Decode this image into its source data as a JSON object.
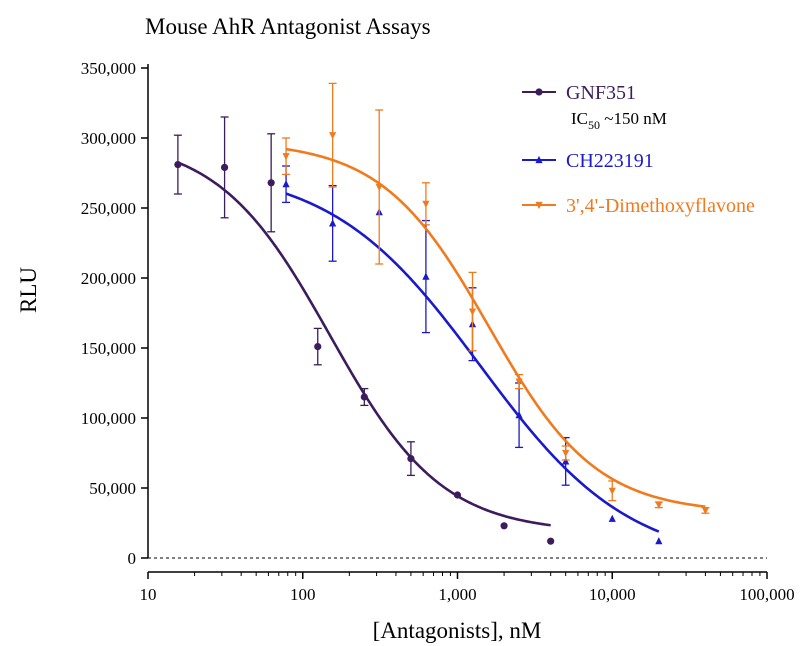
{
  "chart_data": {
    "type": "scatter",
    "title": "Mouse AhR Antagonist Assays",
    "xlabel": "[Antagonists], nM",
    "ylabel": "RLU",
    "xscale": "log",
    "xlim": [
      10,
      100000
    ],
    "ylim": [
      0,
      350000
    ],
    "x_ticks": [
      {
        "value": 10,
        "label": "10"
      },
      {
        "value": 100,
        "label": "100"
      },
      {
        "value": 1000,
        "label": "1,000"
      },
      {
        "value": 10000,
        "label": "10,000"
      },
      {
        "value": 100000,
        "label": "100,000"
      }
    ],
    "y_ticks": [
      {
        "value": 0,
        "label": "0"
      },
      {
        "value": 50000,
        "label": "50,000"
      },
      {
        "value": 100000,
        "label": "100,000"
      },
      {
        "value": 150000,
        "label": "150,000"
      },
      {
        "value": 200000,
        "label": "200,000"
      },
      {
        "value": 250000,
        "label": "250,000"
      },
      {
        "value": 300000,
        "label": "300,000"
      },
      {
        "value": 350000,
        "label": "350,000"
      }
    ],
    "baseline": {
      "y": 0,
      "style": "dashed"
    },
    "grid": false,
    "legend_position": "top-right",
    "annotation": {
      "prefix": "IC",
      "subscript": "50",
      "suffix": " ~150 nM"
    },
    "series": [
      {
        "name": "GNF351",
        "color": "#3d1c5e",
        "marker": "circle",
        "points": [
          {
            "x": 15.6,
            "y": 281000,
            "err": 21000
          },
          {
            "x": 31.25,
            "y": 279000,
            "err": 36000
          },
          {
            "x": 62.5,
            "y": 268000,
            "err": 35000
          },
          {
            "x": 125,
            "y": 151000,
            "err": 13000
          },
          {
            "x": 250,
            "y": 115000,
            "err": 6000
          },
          {
            "x": 500,
            "y": 71000,
            "err": 12000
          },
          {
            "x": 1000,
            "y": 45000,
            "err": 0
          },
          {
            "x": 2000,
            "y": 23000,
            "err": 0
          },
          {
            "x": 4000,
            "y": 12000,
            "err": 0
          }
        ],
        "fit": {
          "top": 300000,
          "bottom": 18000,
          "ic50": 150,
          "hill": 1.2,
          "xmin": 15.6,
          "xmax": 4000
        }
      },
      {
        "name": "CH223191",
        "color": "#1a1acc",
        "marker": "triangle-up",
        "points": [
          {
            "x": 78,
            "y": 267000,
            "err": 13000
          },
          {
            "x": 156,
            "y": 239000,
            "err": 27000
          },
          {
            "x": 312,
            "y": 247000,
            "err": 0
          },
          {
            "x": 625,
            "y": 201000,
            "err": 40000
          },
          {
            "x": 1250,
            "y": 167000,
            "err": 26000
          },
          {
            "x": 2500,
            "y": 102000,
            "err": 23000
          },
          {
            "x": 5000,
            "y": 69000,
            "err": 17000
          },
          {
            "x": 10000,
            "y": 28000,
            "err": 0
          },
          {
            "x": 20000,
            "y": 12000,
            "err": 0
          }
        ],
        "fit": {
          "top": 280000,
          "bottom": -5000,
          "ic50": 1400,
          "hill": 0.9,
          "xmin": 78,
          "xmax": 20000
        }
      },
      {
        "name": "3',4'-Dimethoxyflavone",
        "color": "#f07b1e",
        "marker": "triangle-down",
        "points": [
          {
            "x": 78,
            "y": 287000,
            "err": 13000
          },
          {
            "x": 156,
            "y": 302000,
            "err": 37000
          },
          {
            "x": 312,
            "y": 265000,
            "err": 55000
          },
          {
            "x": 625,
            "y": 253000,
            "err": 15000
          },
          {
            "x": 1250,
            "y": 176000,
            "err": 28000
          },
          {
            "x": 2500,
            "y": 126000,
            "err": 5000
          },
          {
            "x": 5000,
            "y": 75000,
            "err": 5000
          },
          {
            "x": 10000,
            "y": 48000,
            "err": 7000
          },
          {
            "x": 20000,
            "y": 38000,
            "err": 2000
          },
          {
            "x": 40000,
            "y": 34000,
            "err": 2000
          }
        ],
        "fit": {
          "top": 298000,
          "bottom": 32000,
          "ic50": 1600,
          "hill": 1.25,
          "xmin": 78,
          "xmax": 40000
        }
      }
    ]
  }
}
